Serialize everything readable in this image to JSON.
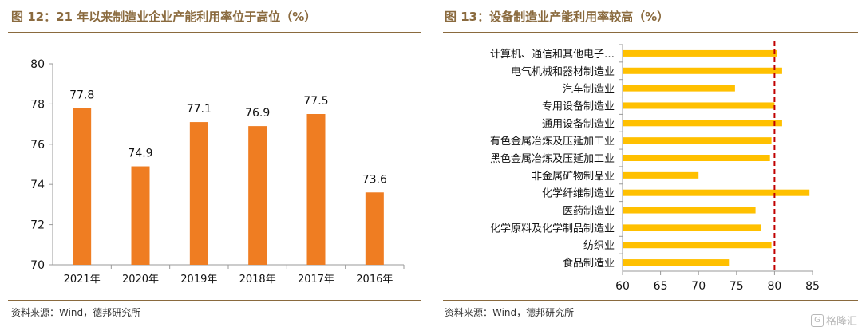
{
  "left_panel": {
    "title": "图 12：21 年以来制造业企业产能利用率位于高位（%）",
    "source": "资料来源：Wind，德邦研究所"
  },
  "right_panel": {
    "title": "图 13：设备制造业产能利用率较高（%）",
    "source": "资料来源：Wind，德邦研究所"
  },
  "watermark": {
    "icon": "gelonghui-logo-icon",
    "text": "格隆汇"
  },
  "colors": {
    "left_bar": "#ef7d22",
    "right_bar": "#ffc000",
    "ref_line": "#c00000",
    "title": "#8a6a3e"
  },
  "chart_data": [
    {
      "type": "bar",
      "categories": [
        "2021年",
        "2020年",
        "2019年",
        "2018年",
        "2017年",
        "2016年"
      ],
      "values": [
        77.8,
        74.9,
        77.1,
        76.9,
        77.5,
        73.6
      ],
      "value_labels": [
        "77.8",
        "74.9",
        "77.1",
        "76.9",
        "77.5",
        "73.6"
      ],
      "ylim": [
        70,
        80
      ],
      "yticks": [
        "70",
        "72",
        "74",
        "76",
        "78",
        "80"
      ],
      "grid": false,
      "data_labels": true
    },
    {
      "type": "bar",
      "orientation": "horizontal",
      "categories": [
        "计算机、通信和其他电子…",
        "电气机械和器材制造业",
        "汽车制造业",
        "专用设备制造业",
        "通用设备制造业",
        "有色金属冶炼及压延加工业",
        "黑色金属冶炼及压延加工业",
        "非金属矿物制品业",
        "化学纤维制造业",
        "医药制造业",
        "化学原料及化学制品制造业",
        "纺织业",
        "食品制造业"
      ],
      "values": [
        80.3,
        81.0,
        74.8,
        80.0,
        81.0,
        79.6,
        79.4,
        70.0,
        84.6,
        77.5,
        78.2,
        79.6,
        74.0
      ],
      "xlim": [
        60,
        85
      ],
      "xticks": [
        "60",
        "65",
        "70",
        "75",
        "80",
        "85"
      ],
      "reference_line": {
        "x": 80,
        "style": "dashed"
      },
      "grid": false
    }
  ]
}
